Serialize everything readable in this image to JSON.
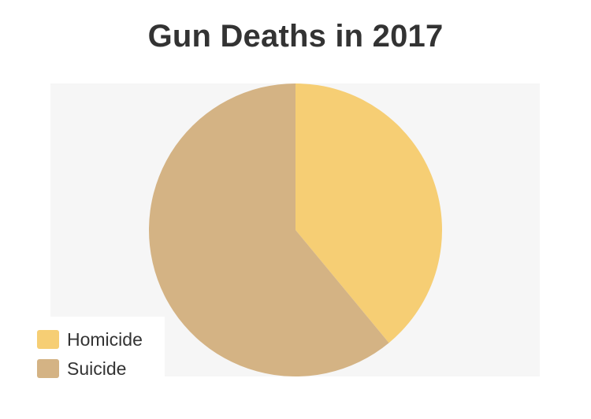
{
  "chart_data": {
    "type": "pie",
    "title": "Gun Deaths in 2017",
    "categories": [
      "Homicide",
      "Suicide"
    ],
    "values": [
      39,
      61
    ],
    "colors": [
      "#f6ce74",
      "#d4b384"
    ],
    "legend_position": "bottom-left"
  }
}
